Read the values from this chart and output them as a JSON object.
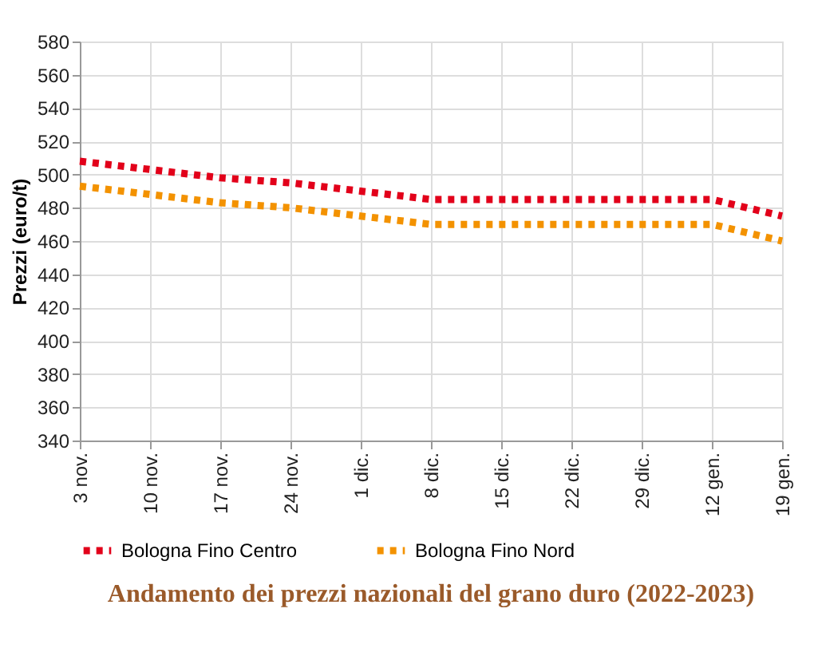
{
  "chart_data": {
    "type": "line",
    "title": "Andamento dei prezzi nazionali del grano duro (2022-2023)",
    "ylabel": "Prezzi (euro/t)",
    "categories": [
      "3 nov.",
      "10 nov.",
      "17 nov.",
      "24 nov.",
      "1 dic.",
      "8 dic.",
      "15 dic.",
      "22 dic.",
      "29 dic.",
      "12 gen.",
      "19 gen."
    ],
    "series": [
      {
        "name": "Bologna Fino Centro",
        "color": "#e2001a",
        "values": [
          508,
          503,
          498,
          495,
          490,
          485,
          485,
          485,
          485,
          485,
          475
        ]
      },
      {
        "name": "Bologna Fino Nord",
        "color": "#f39200",
        "values": [
          493,
          488,
          483,
          480,
          475,
          470,
          470,
          470,
          470,
          470,
          460
        ]
      }
    ],
    "ylim": [
      340,
      580
    ],
    "yticks": [
      340,
      360,
      380,
      400,
      420,
      440,
      460,
      480,
      500,
      520,
      540,
      560,
      580
    ],
    "grid": true,
    "legend": "bottom",
    "line_style": "dotted",
    "marker": "none"
  }
}
